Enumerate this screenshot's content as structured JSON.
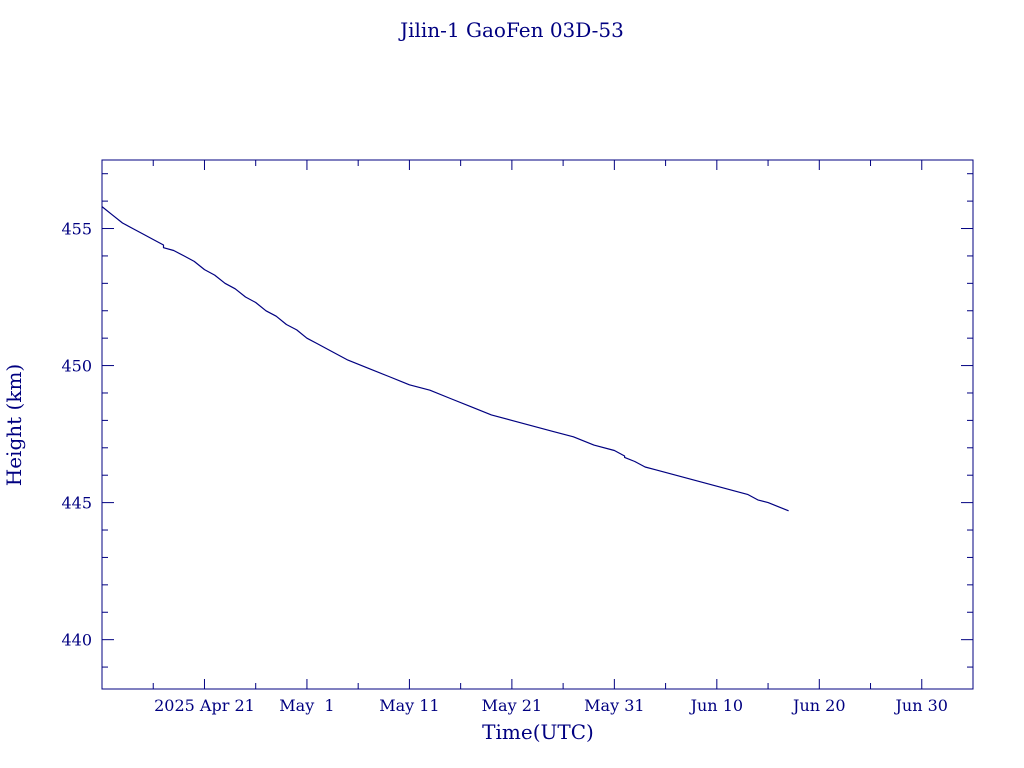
{
  "chart_data": {
    "type": "line",
    "title": "Jilin-1 GaoFen 03D-53",
    "xlabel": "Time(UTC)",
    "ylabel": "Height (km)",
    "x_tick_labels": [
      "2025 Apr 21",
      "May  1",
      "May 11",
      "May 21",
      "May 31",
      "Jun 10",
      "Jun 20",
      "Jun 30"
    ],
    "x_tick_dates": [
      "2025-04-21",
      "2025-05-01",
      "2025-05-11",
      "2025-05-21",
      "2025-05-31",
      "2025-06-10",
      "2025-06-20",
      "2025-06-30"
    ],
    "xlim": [
      "2025-04-11",
      "2025-07-05"
    ],
    "yticks": [
      440,
      445,
      450,
      455
    ],
    "ylim": [
      438.2,
      457.5
    ],
    "grid": false,
    "colors": {
      "line": "#000080",
      "axis": "#000080",
      "text": "#000080",
      "background": "#ffffff"
    },
    "series": [
      {
        "x": [
          "2025-04-11",
          "2025-04-12",
          "2025-04-13",
          "2025-04-14",
          "2025-04-15",
          "2025-04-16",
          "2025-04-17",
          "2025-04-17",
          "2025-04-18",
          "2025-04-19",
          "2025-04-20",
          "2025-04-21",
          "2025-04-22",
          "2025-04-23",
          "2025-04-24",
          "2025-04-25",
          "2025-04-26",
          "2025-04-27",
          "2025-04-28",
          "2025-04-29",
          "2025-04-30",
          "2025-05-01",
          "2025-05-02",
          "2025-05-03",
          "2025-05-05",
          "2025-05-07",
          "2025-05-09",
          "2025-05-11",
          "2025-05-13",
          "2025-05-15",
          "2025-05-17",
          "2025-05-19",
          "2025-05-21",
          "2025-05-23",
          "2025-05-25",
          "2025-05-27",
          "2025-05-29",
          "2025-05-31",
          "2025-06-01",
          "2025-06-01",
          "2025-06-02",
          "2025-06-03",
          "2025-06-04",
          "2025-06-06",
          "2025-06-08",
          "2025-06-10",
          "2025-06-12",
          "2025-06-13",
          "2025-06-14",
          "2025-06-15",
          "2025-06-16",
          "2025-06-17"
        ],
        "values": [
          455.8,
          455.5,
          455.2,
          455.0,
          454.8,
          454.6,
          454.4,
          454.3,
          454.2,
          454.0,
          453.8,
          453.5,
          453.3,
          453.0,
          452.8,
          452.5,
          452.3,
          452.0,
          451.8,
          451.5,
          451.3,
          451.0,
          450.8,
          450.6,
          450.2,
          449.9,
          449.6,
          449.3,
          449.1,
          448.8,
          448.5,
          448.2,
          448.0,
          447.8,
          447.6,
          447.4,
          447.1,
          446.9,
          446.7,
          446.65,
          446.5,
          446.3,
          446.2,
          446.0,
          445.8,
          445.6,
          445.4,
          445.3,
          445.1,
          445.0,
          444.85,
          444.7
        ]
      }
    ]
  }
}
